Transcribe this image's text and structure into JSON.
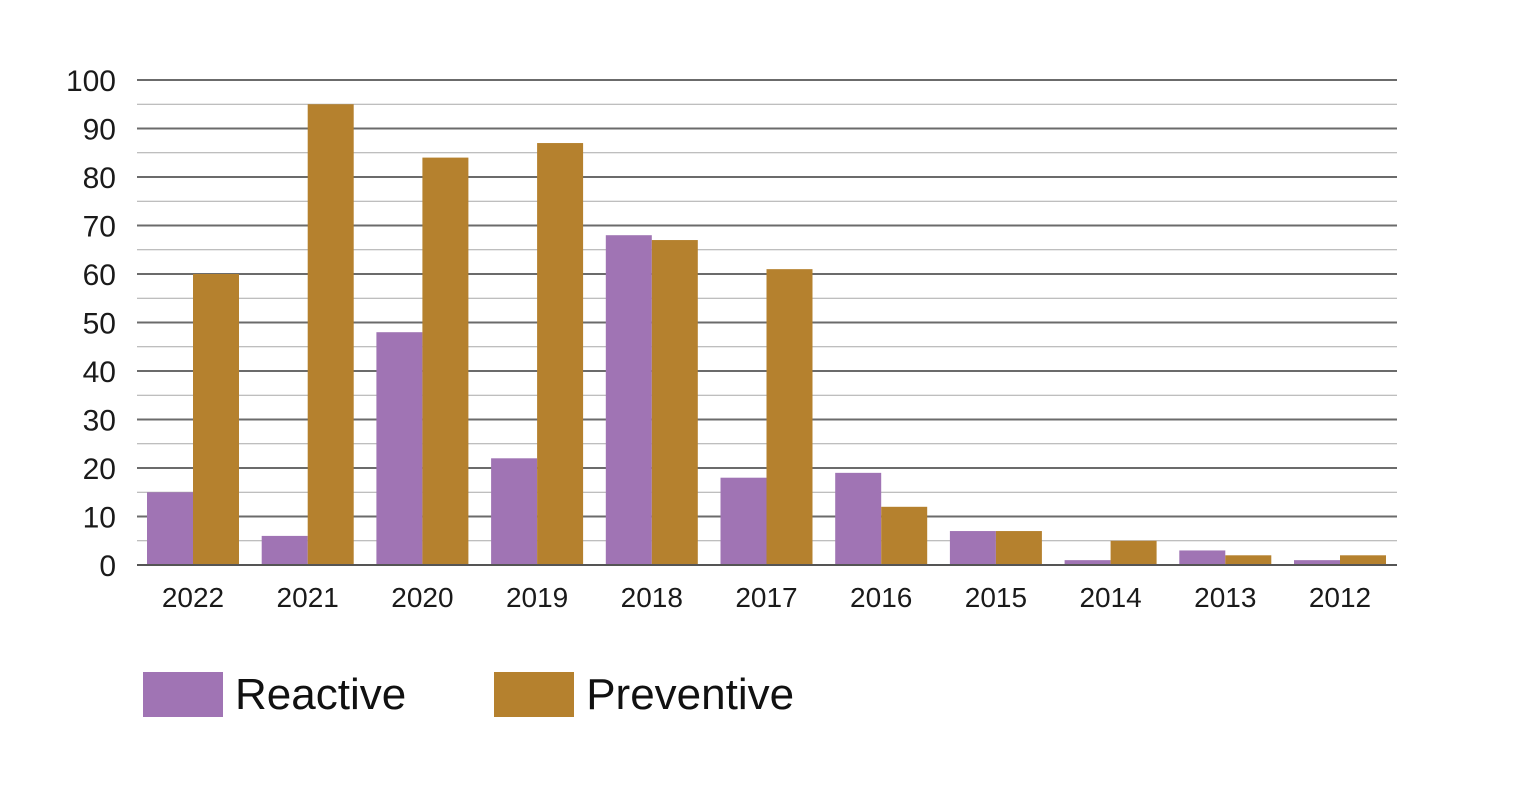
{
  "chart_data": {
    "type": "bar",
    "categories": [
      "2022",
      "2021",
      "2020",
      "2019",
      "2018",
      "2017",
      "2016",
      "2015",
      "2014",
      "2013",
      "2012"
    ],
    "series": [
      {
        "name": "Reactive",
        "color": "#a074b4",
        "values": [
          15,
          6,
          48,
          22,
          68,
          18,
          19,
          7,
          1,
          3,
          1
        ]
      },
      {
        "name": "Preventive",
        "color": "#b5812e",
        "values": [
          60,
          95,
          84,
          87,
          67,
          61,
          12,
          7,
          5,
          2,
          2
        ]
      }
    ],
    "yticks": [
      "0",
      "10",
      "20",
      "30",
      "40",
      "50",
      "60",
      "70",
      "80",
      "90",
      "100"
    ],
    "ylim": [
      0,
      100
    ],
    "minor_grid_step": 5,
    "grid": true,
    "legend_position": "bottom-left",
    "title": "",
    "xlabel": "",
    "ylabel": ""
  }
}
